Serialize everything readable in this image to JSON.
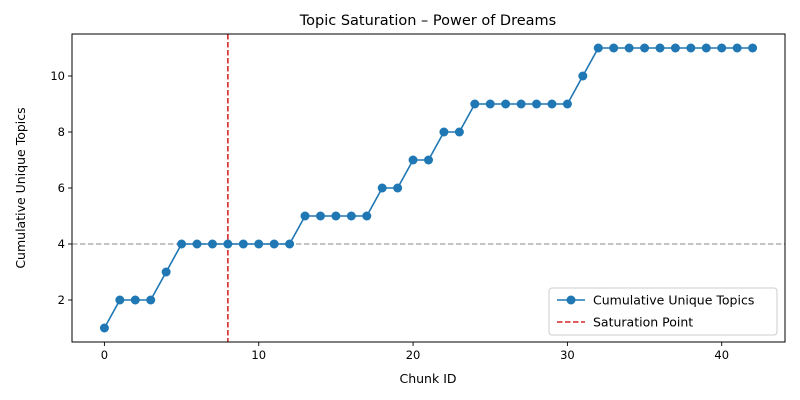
{
  "chart_data": {
    "type": "line",
    "title": "Topic Saturation – Power of Dreams",
    "xlabel": "Chunk ID",
    "ylabel": "Cumulative Unique Topics",
    "xlim": [
      -2.1,
      44.1
    ],
    "ylim": [
      0.5,
      11.5
    ],
    "xticks": [
      0,
      10,
      20,
      30,
      40
    ],
    "yticks": [
      2,
      4,
      6,
      8,
      10
    ],
    "grid": false,
    "legend_position": "lower right",
    "series": [
      {
        "name": "Cumulative Unique Topics",
        "color": "#1f77b4",
        "marker": "circle",
        "x": [
          0,
          1,
          2,
          3,
          4,
          5,
          6,
          7,
          8,
          9,
          10,
          11,
          12,
          13,
          14,
          15,
          16,
          17,
          18,
          19,
          20,
          21,
          22,
          23,
          24,
          25,
          26,
          27,
          28,
          29,
          30,
          31,
          32,
          33,
          34,
          35,
          36,
          37,
          38,
          39,
          40,
          41,
          42
        ],
        "values": [
          1,
          2,
          2,
          2,
          3,
          4,
          4,
          4,
          4,
          4,
          4,
          4,
          4,
          5,
          5,
          5,
          5,
          5,
          6,
          6,
          7,
          7,
          8,
          8,
          9,
          9,
          9,
          9,
          9,
          9,
          9,
          10,
          11,
          11,
          11,
          11,
          11,
          11,
          11,
          11,
          11,
          11,
          11
        ]
      }
    ],
    "reference_lines": [
      {
        "name": "Saturation Point",
        "orientation": "vertical",
        "value": 8,
        "color": "#d62728",
        "style": "dashed",
        "in_legend": true
      },
      {
        "orientation": "horizontal",
        "value": 4,
        "color": "#b0b0b0",
        "style": "dashed",
        "in_legend": false
      }
    ]
  }
}
